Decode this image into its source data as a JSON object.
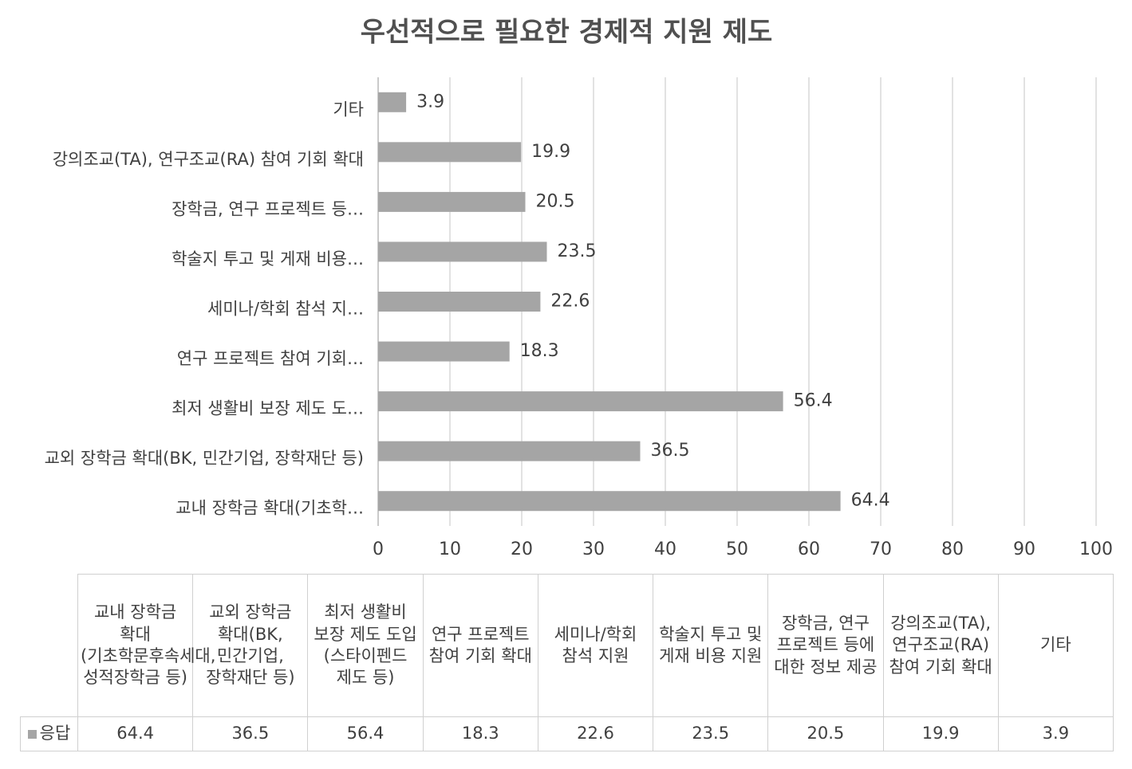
{
  "chart_data": {
    "type": "bar",
    "orientation": "horizontal",
    "title": "우선적으로 필요한 경제적 지원 제도",
    "categories": [
      "교내 장학금 확대(기초학문후속세대, 성적장학금 등)",
      "교외 장학금 확대(BK, 민간기업, 장학재단 등)",
      "최저 생활비 보장 제도 도입(스타이펜드 제도 등)",
      "연구 프로젝트 참여 기회 확대",
      "세미나/학회 참석 지원",
      "학술지 투고 및 게재 비용 지원",
      "장학금, 연구 프로젝트 등에 대한 정보 제공",
      "강의조교(TA), 연구조교(RA) 참여 기회 확대",
      "기타"
    ],
    "axis_labels": [
      "교내 장학금 확대(기초학…",
      "교외 장학금 확대(BK, 민간기업, 장학재단 등)",
      "최저 생활비 보장 제도 도…",
      "연구 프로젝트 참여 기회…",
      "세미나/학회 참석 지…",
      "학술지 투고 및 게재 비용…",
      "장학금, 연구 프로젝트 등…",
      "강의조교(TA), 연구조교(RA) 참여 기회 확대",
      "기타"
    ],
    "series": [
      {
        "name": "응답",
        "color": "#a5a5a5",
        "values": [
          64.4,
          36.5,
          56.4,
          18.3,
          22.6,
          23.5,
          20.5,
          19.9,
          3.9
        ]
      }
    ],
    "xlim": [
      0,
      100
    ],
    "xticks": [
      0,
      10,
      20,
      30,
      40,
      50,
      60,
      70,
      80,
      90,
      100
    ],
    "grid": true,
    "data_table": true
  }
}
